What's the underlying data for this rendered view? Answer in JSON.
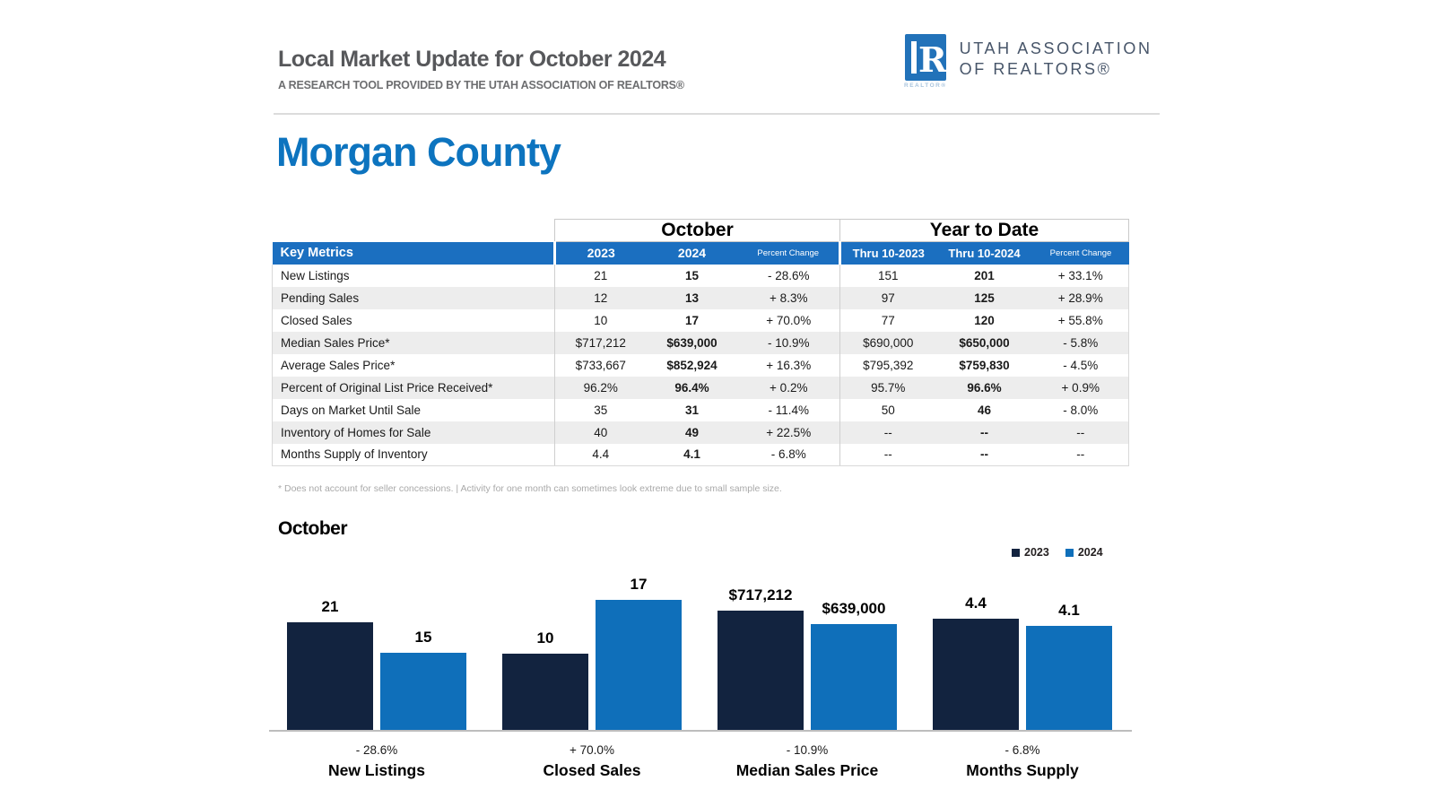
{
  "header": {
    "title": "Local Market Update for October 2024",
    "subtitle": "A RESEARCH TOOL PROVIDED BY THE UTAH ASSOCIATION OF REALTORS®"
  },
  "logo": {
    "badge_letter": "R",
    "badge_caption": "REALTOR®",
    "wordmark_line1": "UTAH ASSOCIATION",
    "wordmark_line2": "OF REALTORS®"
  },
  "region_title": "Morgan County",
  "metrics_table": {
    "group_headers": {
      "month": "October",
      "ytd": "Year to Date"
    },
    "header": {
      "key_metrics": "Key Metrics",
      "columns": [
        "2023",
        "2024",
        "Percent Change",
        "Thru 10-2023",
        "Thru 10-2024",
        "Percent Change"
      ]
    },
    "rows": [
      {
        "metric": "New Listings",
        "values": [
          "21",
          "15",
          "- 28.6%",
          "151",
          "201",
          "+ 33.1%"
        ]
      },
      {
        "metric": "Pending Sales",
        "values": [
          "12",
          "13",
          "+ 8.3%",
          "97",
          "125",
          "+ 28.9%"
        ]
      },
      {
        "metric": "Closed Sales",
        "values": [
          "10",
          "17",
          "+ 70.0%",
          "77",
          "120",
          "+ 55.8%"
        ]
      },
      {
        "metric": "Median Sales Price*",
        "values": [
          "$717,212",
          "$639,000",
          "- 10.9%",
          "$690,000",
          "$650,000",
          "- 5.8%"
        ]
      },
      {
        "metric": "Average Sales Price*",
        "values": [
          "$733,667",
          "$852,924",
          "+ 16.3%",
          "$795,392",
          "$759,830",
          "- 4.5%"
        ]
      },
      {
        "metric": "Percent of Original List Price Received*",
        "values": [
          "96.2%",
          "96.4%",
          "+ 0.2%",
          "95.7%",
          "96.6%",
          "+ 0.9%"
        ]
      },
      {
        "metric": "Days on Market Until Sale",
        "values": [
          "35",
          "31",
          "- 11.4%",
          "50",
          "46",
          "- 8.0%"
        ]
      },
      {
        "metric": "Inventory of Homes for Sale",
        "values": [
          "40",
          "49",
          "+ 22.5%",
          "--",
          "--",
          "--"
        ]
      },
      {
        "metric": "Months Supply of Inventory",
        "values": [
          "4.4",
          "4.1",
          "- 6.8%",
          "--",
          "--",
          "--"
        ]
      }
    ],
    "footnote": "* Does not account for seller concessions.  |  Activity for one month can sometimes look extreme due to small sample size."
  },
  "chart_data": {
    "type": "bar",
    "title": "October",
    "legend": [
      "2023",
      "2024"
    ],
    "legend_position": "top-right",
    "categories": [
      "New Listings",
      "Closed Sales",
      "Median Sales Price",
      "Months Supply"
    ],
    "series": [
      {
        "name": "2023",
        "values": [
          21,
          10,
          717212,
          4.4
        ],
        "labels": [
          "21",
          "10",
          "$717,212",
          "4.4"
        ]
      },
      {
        "name": "2024",
        "values": [
          15,
          17,
          639000,
          4.1
        ],
        "labels": [
          "15",
          "17",
          "$639,000",
          "4.1"
        ]
      }
    ],
    "percent_changes": [
      "- 28.6%",
      "+ 70.0%",
      "- 10.9%",
      "- 6.8%"
    ],
    "normalization": "per-category",
    "colors": {
      "2023": "#12233f",
      "2024": "#0f6fba"
    },
    "grid": false
  },
  "colors": {
    "accent_blue": "#0d74bf",
    "table_header_blue": "#1b6fc0",
    "logo_blue": "#2272b9"
  }
}
